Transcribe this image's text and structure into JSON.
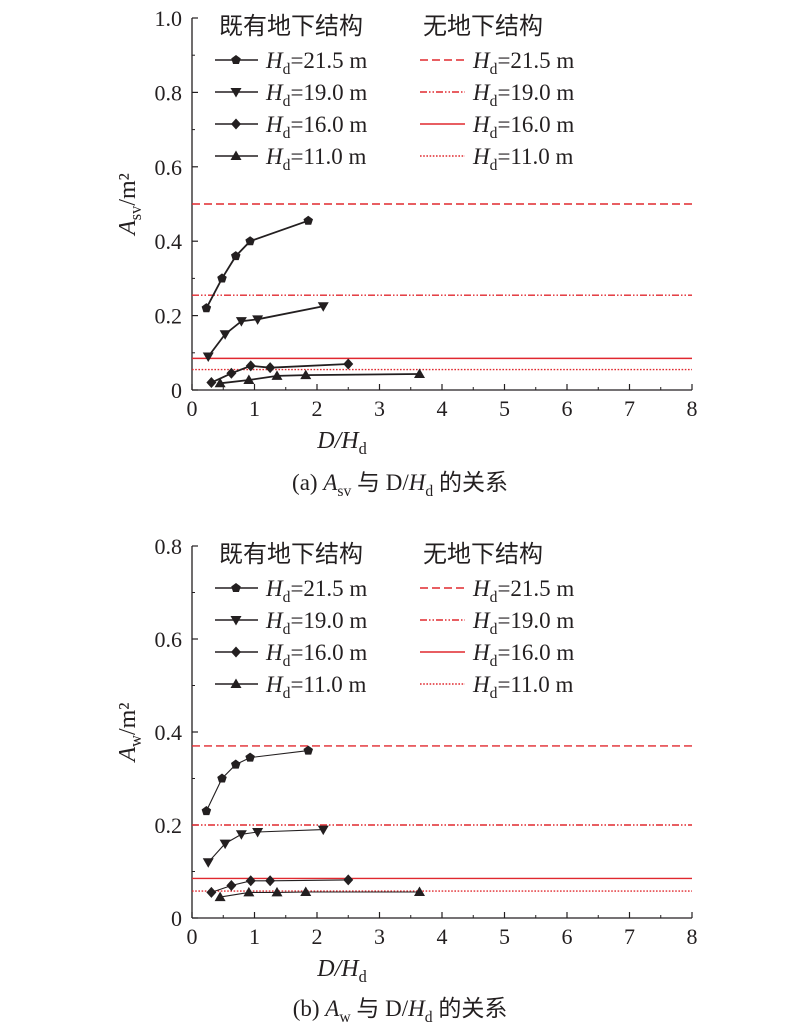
{
  "chart_data": [
    {
      "type": "line",
      "caption": "(a) A_sv 与 D/H_d 的关系",
      "xlabel": "D/H_d",
      "ylabel": "A_sv/m²",
      "xlim": [
        0,
        8
      ],
      "ylim": [
        0,
        1.0
      ],
      "xticks": [
        0,
        1,
        2,
        3,
        4,
        5,
        6,
        7,
        8
      ],
      "yticks": [
        0,
        0.2,
        0.4,
        0.6,
        0.8,
        1.0
      ],
      "ytick_labels": [
        "0",
        "0.2",
        "0.4",
        "0.6",
        "0.8",
        "1.0"
      ],
      "legend_headers": [
        "既有地下结构",
        "无地下结构"
      ],
      "legend_position": "top",
      "series": [
        {
          "name": "H_d=21.5 m",
          "group": "既有地下结构",
          "marker": "pentagon",
          "color": "#231f20",
          "x": [
            0.23,
            0.48,
            0.7,
            0.93,
            1.86
          ],
          "y": [
            0.22,
            0.3,
            0.36,
            0.4,
            0.455
          ]
        },
        {
          "name": "H_d=19.0 m",
          "group": "既有地下结构",
          "marker": "triangle-down",
          "color": "#231f20",
          "x": [
            0.26,
            0.53,
            0.79,
            1.05,
            2.1
          ],
          "y": [
            0.09,
            0.15,
            0.185,
            0.19,
            0.225
          ]
        },
        {
          "name": "H_d=16.0 m",
          "group": "既有地下结构",
          "marker": "diamond",
          "color": "#231f20",
          "x": [
            0.31,
            0.63,
            0.94,
            1.25,
            2.5
          ],
          "y": [
            0.02,
            0.045,
            0.065,
            0.06,
            0.07
          ]
        },
        {
          "name": "H_d=11.0 m",
          "group": "既有地下结构",
          "marker": "triangle-up",
          "color": "#231f20",
          "x": [
            0.45,
            0.91,
            1.36,
            1.82,
            3.64
          ],
          "y": [
            0.018,
            0.027,
            0.038,
            0.04,
            0.043
          ]
        },
        {
          "name": "H_d=21.5 m",
          "group": "无地下结构",
          "line": "dashed",
          "color": "#e0282f",
          "y": 0.5
        },
        {
          "name": "H_d=19.0 m",
          "group": "无地下结构",
          "line": "dash-dot-dot",
          "color": "#e0282f",
          "y": 0.255
        },
        {
          "name": "H_d=16.0 m",
          "group": "无地下结构",
          "line": "solid",
          "color": "#e0282f",
          "y": 0.085
        },
        {
          "name": "H_d=11.0 m",
          "group": "无地下结构",
          "line": "dotted",
          "color": "#e0282f",
          "y": 0.055
        }
      ]
    },
    {
      "type": "line",
      "caption": "(b) A_w 与 D/H_d 的关系",
      "xlabel": "D/H_d",
      "ylabel": "A_w/m²",
      "xlim": [
        0,
        8
      ],
      "ylim": [
        0,
        0.8
      ],
      "xticks": [
        0,
        1,
        2,
        3,
        4,
        5,
        6,
        7,
        8
      ],
      "yticks": [
        0,
        0.2,
        0.4,
        0.6,
        0.8
      ],
      "ytick_labels": [
        "0",
        "0.2",
        "0.4",
        "0.6",
        "0.8"
      ],
      "legend_headers": [
        "既有地下结构",
        "无地下结构"
      ],
      "legend_position": "top",
      "series": [
        {
          "name": "H_d=21.5 m",
          "group": "既有地下结构",
          "marker": "pentagon",
          "color": "#231f20",
          "x": [
            0.23,
            0.48,
            0.7,
            0.93,
            1.86
          ],
          "y": [
            0.23,
            0.3,
            0.33,
            0.345,
            0.36
          ]
        },
        {
          "name": "H_d=19.0 m",
          "group": "既有地下结构",
          "marker": "triangle-down",
          "color": "#231f20",
          "x": [
            0.26,
            0.53,
            0.79,
            1.05,
            2.1
          ],
          "y": [
            0.12,
            0.16,
            0.18,
            0.185,
            0.19
          ]
        },
        {
          "name": "H_d=16.0 m",
          "group": "既有地下结构",
          "marker": "diamond",
          "color": "#231f20",
          "x": [
            0.31,
            0.63,
            0.94,
            1.25,
            2.5
          ],
          "y": [
            0.055,
            0.07,
            0.08,
            0.08,
            0.082
          ]
        },
        {
          "name": "H_d=11.0 m",
          "group": "既有地下结构",
          "marker": "triangle-up",
          "color": "#231f20",
          "x": [
            0.45,
            0.91,
            1.36,
            1.82,
            3.64
          ],
          "y": [
            0.045,
            0.055,
            0.055,
            0.056,
            0.056
          ]
        },
        {
          "name": "H_d=21.5 m",
          "group": "无地下结构",
          "line": "dashed",
          "color": "#e0282f",
          "y": 0.37
        },
        {
          "name": "H_d=19.0 m",
          "group": "无地下结构",
          "line": "dash-dot-dot",
          "color": "#e0282f",
          "y": 0.2
        },
        {
          "name": "H_d=16.0 m",
          "group": "无地下结构",
          "line": "solid",
          "color": "#e0282f",
          "y": 0.085
        },
        {
          "name": "H_d=11.0 m",
          "group": "无地下结构",
          "line": "dotted",
          "color": "#e0282f",
          "y": 0.058
        }
      ]
    }
  ]
}
